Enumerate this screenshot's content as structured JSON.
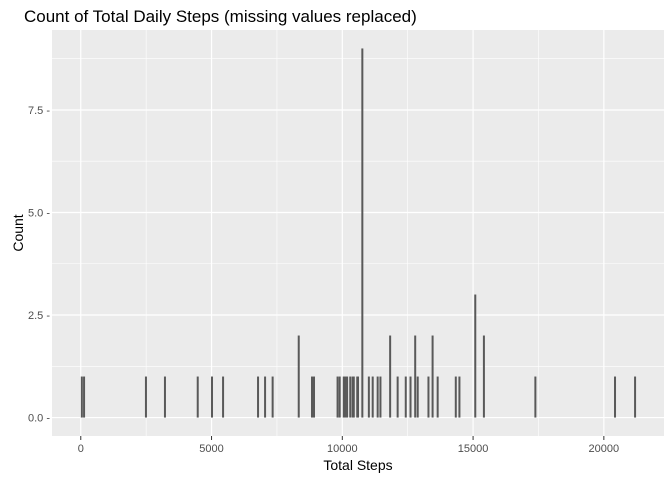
{
  "chart_data": {
    "type": "bar",
    "title": "Count of Total Daily Steps (missing values replaced)",
    "xlabel": "Total Steps",
    "ylabel": "Count",
    "xlim": [
      -1100,
      22300
    ],
    "ylim": [
      -0.45,
      9.45
    ],
    "x_ticks": [
      0,
      5000,
      10000,
      15000,
      20000
    ],
    "x_tick_labels": [
      "0",
      "5000",
      "10000",
      "15000",
      "20000"
    ],
    "y_ticks": [
      0,
      2.5,
      5.0,
      7.5
    ],
    "y_tick_labels": [
      "0.0 -",
      "2.5 -",
      "5.0 -",
      "7.5 -"
    ],
    "grid": true,
    "colors": {
      "panel": "#ebebeb",
      "grid": "#ffffff",
      "bar": "#595959"
    },
    "bars": [
      {
        "x": 41,
        "count": 1
      },
      {
        "x": 126,
        "count": 1
      },
      {
        "x": 2492,
        "count": 1
      },
      {
        "x": 3219,
        "count": 1
      },
      {
        "x": 4472,
        "count": 1
      },
      {
        "x": 5018,
        "count": 1
      },
      {
        "x": 5441,
        "count": 1
      },
      {
        "x": 6778,
        "count": 1
      },
      {
        "x": 7047,
        "count": 1
      },
      {
        "x": 7336,
        "count": 1
      },
      {
        "x": 8334,
        "count": 2
      },
      {
        "x": 8841,
        "count": 1
      },
      {
        "x": 8918,
        "count": 1
      },
      {
        "x": 9819,
        "count": 1
      },
      {
        "x": 9900,
        "count": 1
      },
      {
        "x": 10056,
        "count": 1
      },
      {
        "x": 10119,
        "count": 1
      },
      {
        "x": 10183,
        "count": 1
      },
      {
        "x": 10304,
        "count": 1
      },
      {
        "x": 10395,
        "count": 1
      },
      {
        "x": 10439,
        "count": 1
      },
      {
        "x": 10571,
        "count": 1
      },
      {
        "x": 10600,
        "count": 1
      },
      {
        "x": 10766,
        "count": 9
      },
      {
        "x": 11015,
        "count": 1
      },
      {
        "x": 11162,
        "count": 1
      },
      {
        "x": 11352,
        "count": 1
      },
      {
        "x": 11458,
        "count": 1
      },
      {
        "x": 11829,
        "count": 2
      },
      {
        "x": 12116,
        "count": 1
      },
      {
        "x": 12426,
        "count": 1
      },
      {
        "x": 12608,
        "count": 1
      },
      {
        "x": 12787,
        "count": 2
      },
      {
        "x": 12883,
        "count": 1
      },
      {
        "x": 13294,
        "count": 1
      },
      {
        "x": 13452,
        "count": 2
      },
      {
        "x": 13646,
        "count": 1
      },
      {
        "x": 14339,
        "count": 1
      },
      {
        "x": 14478,
        "count": 1
      },
      {
        "x": 15084,
        "count": 3
      },
      {
        "x": 15414,
        "count": 2
      },
      {
        "x": 17382,
        "count": 1
      },
      {
        "x": 20427,
        "count": 1
      },
      {
        "x": 21194,
        "count": 1
      }
    ]
  }
}
